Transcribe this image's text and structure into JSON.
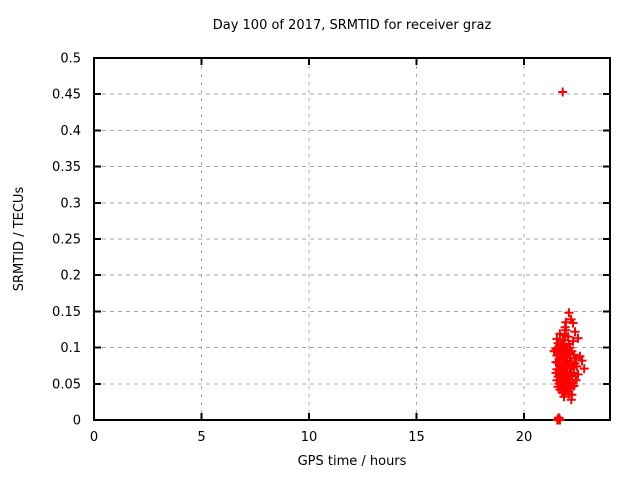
{
  "page": {
    "background": "#ffffff"
  },
  "chart_data": {
    "type": "scatter",
    "title": "Day 100 of 2017, SRMTID for receiver graz",
    "xlabel": "GPS time / hours",
    "ylabel": "SRMTID / TECUs",
    "xlim": [
      0,
      24
    ],
    "ylim": [
      0,
      0.5
    ],
    "xticks": {
      "values": [
        0,
        5,
        10,
        15,
        20
      ],
      "labels": [
        "0",
        "5",
        "10",
        "15",
        "20"
      ]
    },
    "yticks": {
      "values": [
        0,
        0.05,
        0.1,
        0.15,
        0.2,
        0.25,
        0.3,
        0.35,
        0.4,
        0.45,
        0.5
      ],
      "labels": [
        "0",
        "0.05",
        "0.1",
        "0.15",
        "0.2",
        "0.25",
        "0.3",
        "0.35",
        "0.4",
        "0.45",
        "0.5"
      ]
    },
    "grid": true,
    "legend_position": "none",
    "axis_color": "#000000",
    "grid_color": "#a8a8a8",
    "series": [
      {
        "name": "SRMTID",
        "marker": "plus",
        "color": "#ff0000",
        "points": [
          [
            21.8,
            0.453
          ],
          [
            22.09,
            0.148
          ],
          [
            22.19,
            0.139
          ],
          [
            21.95,
            0.135
          ],
          [
            22.28,
            0.134
          ],
          [
            21.91,
            0.128
          ],
          [
            21.95,
            0.124
          ],
          [
            22.37,
            0.122
          ],
          [
            21.67,
            0.119
          ],
          [
            21.91,
            0.117
          ],
          [
            22.05,
            0.115
          ],
          [
            21.53,
            0.112
          ],
          [
            22.51,
            0.113
          ],
          [
            21.81,
            0.11
          ],
          [
            22.28,
            0.109
          ],
          [
            21.58,
            0.106
          ],
          [
            22.09,
            0.105
          ],
          [
            21.7,
            0.104
          ],
          [
            21.86,
            0.103
          ],
          [
            21.95,
            0.101
          ],
          [
            22.14,
            0.1
          ],
          [
            21.63,
            0.1
          ],
          [
            21.49,
            0.098
          ],
          [
            21.77,
            0.097
          ],
          [
            22.0,
            0.096
          ],
          [
            22.23,
            0.095
          ],
          [
            21.58,
            0.094
          ],
          [
            21.4,
            0.095
          ],
          [
            21.86,
            0.093
          ],
          [
            22.09,
            0.092
          ],
          [
            21.67,
            0.091
          ],
          [
            21.95,
            0.09
          ],
          [
            22.32,
            0.09
          ],
          [
            21.53,
            0.089
          ],
          [
            22.6,
            0.088
          ],
          [
            21.72,
            0.088
          ],
          [
            21.91,
            0.087
          ],
          [
            22.14,
            0.086
          ],
          [
            22.42,
            0.085
          ],
          [
            21.63,
            0.084
          ],
          [
            21.81,
            0.083
          ],
          [
            22.7,
            0.082
          ],
          [
            22.0,
            0.082
          ],
          [
            22.19,
            0.081
          ],
          [
            21.49,
            0.08
          ],
          [
            21.86,
            0.08
          ],
          [
            21.58,
            0.079
          ],
          [
            21.77,
            0.078
          ],
          [
            22.37,
            0.078
          ],
          [
            21.95,
            0.077
          ],
          [
            22.09,
            0.076
          ],
          [
            22.28,
            0.075
          ],
          [
            21.67,
            0.074
          ],
          [
            22.46,
            0.074
          ],
          [
            21.86,
            0.073
          ],
          [
            22.0,
            0.072
          ],
          [
            22.8,
            0.071
          ],
          [
            22.19,
            0.071
          ],
          [
            21.53,
            0.07
          ],
          [
            21.72,
            0.07
          ],
          [
            21.63,
            0.069
          ],
          [
            21.81,
            0.068
          ],
          [
            21.95,
            0.067
          ],
          [
            22.14,
            0.066
          ],
          [
            21.49,
            0.065
          ],
          [
            22.32,
            0.065
          ],
          [
            21.72,
            0.064
          ],
          [
            21.91,
            0.063
          ],
          [
            22.51,
            0.063
          ],
          [
            22.05,
            0.062
          ],
          [
            22.23,
            0.061
          ],
          [
            21.86,
            0.061
          ],
          [
            21.58,
            0.06
          ],
          [
            21.67,
            0.059
          ],
          [
            21.81,
            0.058
          ],
          [
            22.0,
            0.057
          ],
          [
            22.14,
            0.056
          ],
          [
            21.53,
            0.055
          ],
          [
            22.42,
            0.055
          ],
          [
            21.77,
            0.054
          ],
          [
            21.95,
            0.053
          ],
          [
            22.09,
            0.052
          ],
          [
            21.86,
            0.052
          ],
          [
            22.28,
            0.051
          ],
          [
            21.63,
            0.05
          ],
          [
            21.72,
            0.049
          ],
          [
            21.91,
            0.048
          ],
          [
            22.05,
            0.047
          ],
          [
            22.32,
            0.047
          ],
          [
            21.58,
            0.046
          ],
          [
            21.81,
            0.045
          ],
          [
            22.19,
            0.044
          ],
          [
            21.67,
            0.042
          ],
          [
            22.0,
            0.041
          ],
          [
            21.95,
            0.04
          ],
          [
            21.77,
            0.038
          ],
          [
            22.09,
            0.036
          ],
          [
            22.23,
            0.035
          ],
          [
            21.86,
            0.032
          ],
          [
            22.2,
            0.028
          ],
          [
            21.55,
            0.0
          ],
          [
            21.58,
            0.001
          ],
          [
            21.61,
            0.0
          ],
          [
            21.64,
            0.002
          ],
          [
            21.67,
            0.0
          ],
          [
            21.61,
            0.003
          ]
        ]
      }
    ]
  }
}
